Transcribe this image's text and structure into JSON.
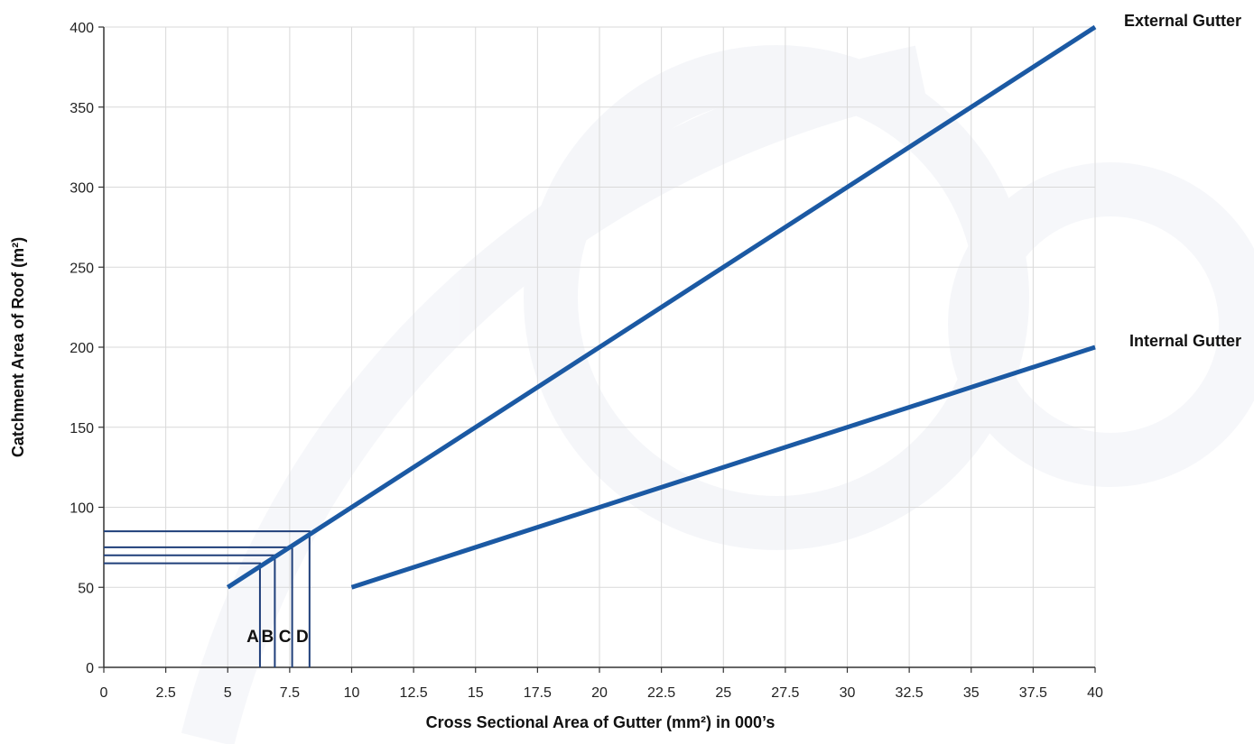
{
  "chart_data": {
    "type": "line",
    "xlabel": "Cross Sectional Area of Gutter (mm²) in 000’s",
    "ylabel": "Catchment Area of Roof (m²)",
    "xlim": [
      0,
      40
    ],
    "ylim": [
      0,
      400
    ],
    "x_ticks": [
      0,
      2.5,
      5,
      7.5,
      10,
      12.5,
      15,
      17.5,
      20,
      22.5,
      25,
      27.5,
      30,
      32.5,
      35,
      37.5,
      40
    ],
    "x_tick_labels": [
      "0",
      "2.5",
      "5",
      "7.5",
      "10",
      "12.5",
      "15",
      "17.5",
      "20",
      "22.5",
      "25",
      "27.5",
      "30",
      "32.5",
      "35",
      "37.5",
      "40"
    ],
    "y_ticks": [
      0,
      50,
      100,
      150,
      200,
      250,
      300,
      350,
      400
    ],
    "y_tick_labels": [
      "0",
      "50",
      "100",
      "150",
      "200",
      "250",
      "300",
      "350",
      "400"
    ],
    "grid": true,
    "series": [
      {
        "name": "External Gutter",
        "x": [
          5,
          40
        ],
        "y": [
          50,
          400
        ],
        "color": "#1b59a3"
      },
      {
        "name": "Internal Gutter",
        "x": [
          10,
          40
        ],
        "y": [
          50,
          200
        ],
        "color": "#1b59a3"
      }
    ],
    "reference_lines": [
      {
        "label": "A",
        "x": 6.3,
        "y": 65
      },
      {
        "label": "B",
        "x": 6.9,
        "y": 70
      },
      {
        "label": "C",
        "x": 7.6,
        "y": 75
      },
      {
        "label": "D",
        "x": 8.3,
        "y": 85
      }
    ],
    "reference_color": "#1f3f7a"
  }
}
